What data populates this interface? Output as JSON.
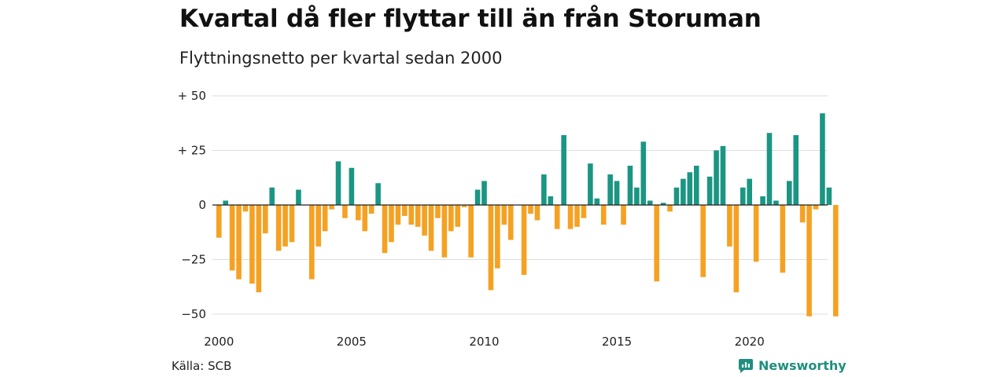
{
  "header": {
    "title": "Kvartal då fler flyttar till än från Storuman",
    "subtitle": "Flyttningsnetto per kvartal sedan 2000"
  },
  "footer": {
    "source": "Källa: SCB",
    "brand": "Newsworthy"
  },
  "colors": {
    "positive": "#1a9683",
    "negative": "#f5a122",
    "grid": "#dddddd",
    "zero": "#222222"
  },
  "chart_data": {
    "type": "bar",
    "title": "Kvartal då fler flyttar till än från Storuman",
    "subtitle": "Flyttningsnetto per kvartal sedan 2000",
    "start_quarter": "2000 Q1",
    "x_tick_labels": [
      "2000",
      "2005",
      "2010",
      "2015",
      "2020"
    ],
    "y_ticks": [
      {
        "value": 50,
        "label": "+ 50"
      },
      {
        "value": 25,
        "label": "+ 25"
      },
      {
        "value": 0,
        "label": "0"
      },
      {
        "value": -25,
        "label": "−25"
      },
      {
        "value": -50,
        "label": "−50"
      }
    ],
    "ylim": [
      -50,
      50
    ],
    "grid": true,
    "values": [
      -15,
      2,
      -30,
      -34,
      -3,
      -36,
      -40,
      -13,
      8,
      -21,
      -19,
      -17,
      7,
      0,
      -34,
      -19,
      -12,
      -2,
      20,
      -6,
      17,
      -7,
      -12,
      -4,
      10,
      -22,
      -17,
      -9,
      -5,
      -9,
      -10,
      -14,
      -21,
      -6,
      -24,
      -12,
      -10,
      -1,
      -24,
      7,
      11,
      -39,
      -29,
      -9,
      -16,
      0,
      -32,
      -4,
      -7,
      14,
      4,
      -11,
      32,
      -11,
      -10,
      -6,
      19,
      3,
      -9,
      14,
      11,
      -9,
      18,
      8,
      29,
      2,
      -35,
      1,
      -3,
      8,
      12,
      15,
      18,
      -33,
      13,
      25,
      27,
      -19,
      -40,
      8,
      12,
      -26,
      4,
      33,
      2,
      -31,
      11,
      32,
      -8,
      -51,
      -2,
      42,
      8,
      -51
    ]
  }
}
